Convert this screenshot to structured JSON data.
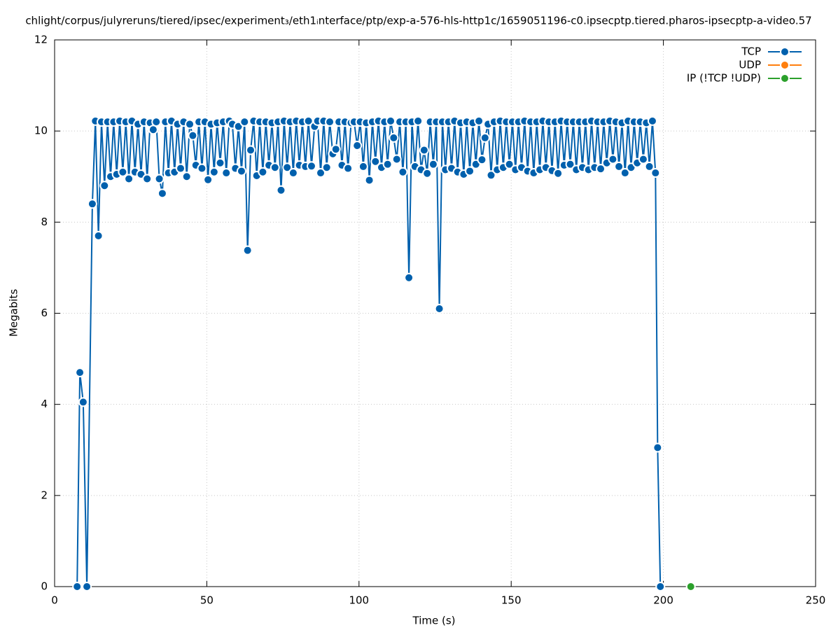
{
  "chart_data": {
    "type": "line",
    "title": "chlight/corpus/julyreruns/tiered/ipsec/experiment₃/eth1ᵢnterface/ptp/exp-a-576-hls-http1c/1659051196-c0.ipsecptp.tiered.pharos-ipsecptp-a-video.57",
    "x_label": "Time (s)",
    "y_label": "Megabits",
    "xlim": [
      0,
      250
    ],
    "xticks": [
      0,
      50,
      100,
      150,
      200,
      250
    ],
    "ylim": [
      0,
      12
    ],
    "yticks": [
      0,
      2,
      4,
      6,
      8,
      10,
      12
    ],
    "grid": true,
    "legend": "top-right",
    "series": [
      {
        "name": "TCP",
        "color": "#0060ad",
        "x": [
          7.4,
          8.3,
          9.4,
          10.6,
          12.4,
          13.4,
          14.4,
          15.4,
          16.4,
          17.4,
          18.4,
          19.4,
          20.4,
          21.4,
          22.4,
          23.4,
          24.4,
          25.4,
          26.4,
          27.4,
          28.4,
          29.4,
          30.4,
          31.4,
          32.4,
          33.4,
          34.4,
          35.4,
          36.4,
          37.4,
          38.4,
          39.4,
          40.4,
          41.4,
          42.4,
          43.4,
          44.4,
          45.4,
          46.4,
          47.4,
          48.4,
          49.4,
          50.4,
          51.4,
          52.4,
          53.4,
          54.4,
          55.4,
          56.4,
          57.4,
          58.4,
          59.4,
          60.4,
          61.4,
          62.4,
          63.4,
          64.4,
          65.4,
          66.4,
          67.4,
          68.4,
          69.4,
          70.4,
          71.4,
          72.4,
          73.4,
          74.4,
          75.4,
          76.4,
          77.4,
          78.4,
          79.4,
          80.4,
          81.4,
          82.4,
          83.4,
          84.4,
          85.4,
          86.4,
          87.4,
          88.4,
          89.4,
          90.4,
          91.4,
          92.4,
          93.4,
          94.4,
          95.4,
          96.4,
          97.4,
          98.4,
          99.4,
          100.4,
          101.4,
          102.4,
          103.4,
          104.4,
          105.4,
          106.4,
          107.4,
          108.4,
          109.4,
          110.4,
          111.4,
          112.4,
          113.4,
          114.4,
          115.4,
          116.4,
          117.4,
          118.4,
          119.4,
          120.4,
          121.4,
          122.4,
          123.4,
          124.4,
          125.4,
          126.4,
          127.4,
          128.4,
          129.4,
          130.4,
          131.4,
          132.4,
          133.4,
          134.4,
          135.4,
          136.4,
          137.4,
          138.4,
          139.4,
          140.4,
          141.4,
          142.4,
          143.4,
          144.4,
          145.4,
          146.4,
          147.4,
          148.4,
          149.4,
          150.4,
          151.4,
          152.4,
          153.4,
          154.4,
          155.4,
          156.4,
          157.4,
          158.4,
          159.4,
          160.4,
          161.4,
          162.4,
          163.4,
          164.4,
          165.4,
          166.4,
          167.4,
          168.4,
          169.4,
          170.4,
          171.4,
          172.4,
          173.4,
          174.4,
          175.4,
          176.4,
          177.4,
          178.4,
          179.4,
          180.4,
          181.4,
          182.4,
          183.4,
          184.4,
          185.4,
          186.4,
          187.4,
          188.4,
          189.4,
          190.4,
          191.4,
          192.4,
          193.4,
          194.4,
          195.4,
          196.4,
          197.4,
          198.1,
          199
        ],
        "values": [
          0,
          4.7,
          4.05,
          0,
          8.4,
          10.22,
          7.7,
          10.2,
          8.8,
          10.2,
          9.0,
          10.2,
          9.05,
          10.22,
          9.1,
          10.2,
          8.95,
          10.22,
          9.1,
          10.15,
          9.05,
          10.2,
          8.95,
          10.18,
          10.03,
          10.2,
          8.95,
          8.63,
          10.2,
          9.08,
          10.22,
          9.1,
          10.15,
          9.18,
          10.2,
          9.0,
          10.15,
          9.9,
          9.25,
          10.2,
          9.18,
          10.2,
          8.93,
          10.15,
          9.1,
          10.18,
          9.3,
          10.2,
          9.08,
          10.22,
          10.15,
          9.18,
          10.1,
          9.12,
          10.2,
          7.38,
          9.58,
          10.22,
          9.02,
          10.2,
          9.1,
          10.2,
          9.25,
          10.18,
          9.2,
          10.2,
          8.7,
          10.22,
          9.2,
          10.2,
          9.08,
          10.22,
          9.25,
          10.2,
          9.22,
          10.22,
          9.23,
          10.1,
          10.22,
          9.08,
          10.22,
          9.2,
          10.2,
          9.5,
          9.6,
          10.2,
          9.25,
          10.2,
          9.18,
          10.18,
          10.2,
          9.68,
          10.2,
          9.22,
          10.18,
          8.92,
          10.2,
          9.33,
          10.22,
          9.2,
          10.2,
          9.27,
          10.22,
          9.85,
          9.38,
          10.2,
          9.1,
          10.2,
          6.78,
          10.2,
          9.22,
          10.22,
          9.15,
          9.58,
          9.07,
          10.2,
          9.27,
          10.2,
          6.1,
          10.2,
          9.15,
          10.2,
          9.18,
          10.22,
          9.1,
          10.18,
          9.05,
          10.2,
          9.12,
          10.18,
          9.27,
          10.22,
          9.37,
          9.85,
          10.15,
          9.03,
          10.2,
          9.15,
          10.22,
          9.2,
          10.2,
          9.27,
          10.2,
          9.15,
          10.2,
          9.2,
          10.22,
          9.12,
          10.2,
          9.08,
          10.2,
          9.15,
          10.22,
          9.2,
          10.2,
          9.13,
          10.2,
          9.07,
          10.22,
          9.25,
          10.2,
          9.27,
          10.2,
          9.15,
          10.2,
          9.2,
          10.2,
          9.15,
          10.22,
          9.2,
          10.2,
          9.17,
          10.2,
          9.3,
          10.22,
          9.38,
          10.2,
          9.22,
          10.18,
          9.08,
          10.22,
          9.2,
          10.2,
          9.3,
          10.2,
          9.38,
          10.18,
          9.22,
          10.22,
          9.08,
          3.05,
          0
        ]
      },
      {
        "name": "UDP",
        "color": "#ff7f0e",
        "x": [],
        "values": []
      },
      {
        "name": "IP (!TCP  !UDP)",
        "color": "#2ca02c",
        "x": [
          209
        ],
        "values": [
          0
        ]
      }
    ]
  }
}
